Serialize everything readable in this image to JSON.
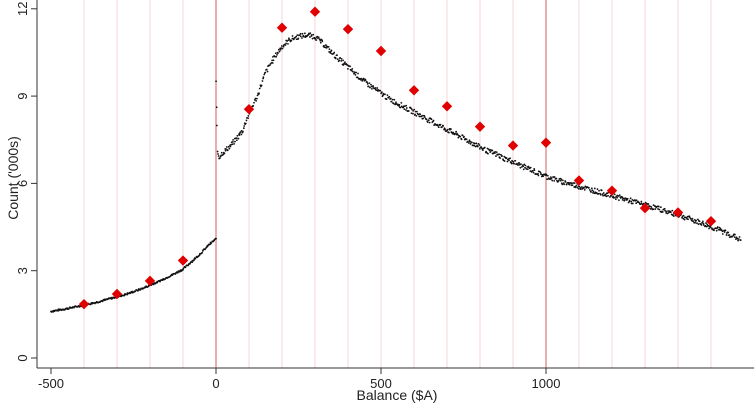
{
  "colors": {
    "background": "#ffffff",
    "axis": "#333333",
    "dots": "#111111",
    "markers": "#e00000",
    "gridline_minor": "#f6d6d6",
    "gridline_major": "#d97a7a"
  },
  "chart_data": {
    "type": "scatter",
    "title": "",
    "xlabel": "Balance ($A)",
    "ylabel": "Count ('000s)",
    "xlim": [
      -500,
      1600
    ],
    "ylim": [
      0,
      12
    ],
    "xticks": [
      -500,
      0,
      500,
      1000
    ],
    "xtick_labels": [
      "-500",
      "0",
      "500",
      "1000"
    ],
    "yticks": [
      0,
      3,
      6,
      9,
      12
    ],
    "ytick_labels": [
      "0",
      "3",
      "6",
      "9",
      "12"
    ],
    "reference_lines_x": [
      -400,
      -300,
      -200,
      -100,
      0,
      100,
      200,
      300,
      400,
      500,
      600,
      700,
      800,
      900,
      1000,
      1100,
      1200,
      1300,
      1400,
      1500
    ],
    "major_reference_lines_x": [
      0,
      1000
    ],
    "grid": false,
    "legend": "none",
    "series": [
      {
        "values": [
          [
            -500,
            1.6
          ],
          [
            -475,
            1.65
          ],
          [
            -450,
            1.7
          ],
          [
            -425,
            1.76
          ],
          [
            -400,
            1.82
          ],
          [
            -375,
            1.88
          ],
          [
            -350,
            1.95
          ],
          [
            -325,
            2.03
          ],
          [
            -300,
            2.1
          ],
          [
            -275,
            2.18
          ],
          [
            -250,
            2.28
          ],
          [
            -225,
            2.38
          ],
          [
            -200,
            2.5
          ],
          [
            -175,
            2.62
          ],
          [
            -150,
            2.76
          ],
          [
            -125,
            2.9
          ],
          [
            -100,
            3.05
          ],
          [
            -75,
            3.3
          ],
          [
            -50,
            3.55
          ],
          [
            -25,
            3.85
          ],
          [
            -5,
            4.05
          ],
          [
            0,
            4.1
          ],
          [
            0,
            9.5
          ],
          [
            5,
            7.1
          ],
          [
            10,
            6.9
          ],
          [
            20,
            7.05
          ],
          [
            40,
            7.25
          ],
          [
            60,
            7.5
          ],
          [
            80,
            7.8
          ],
          [
            100,
            8.4
          ],
          [
            125,
            9.0
          ],
          [
            150,
            9.8
          ],
          [
            175,
            10.3
          ],
          [
            200,
            10.7
          ],
          [
            225,
            10.95
          ],
          [
            250,
            11.05
          ],
          [
            275,
            11.1
          ],
          [
            300,
            11.05
          ],
          [
            325,
            10.8
          ],
          [
            350,
            10.5
          ],
          [
            375,
            10.25
          ],
          [
            400,
            10.0
          ],
          [
            425,
            9.75
          ],
          [
            450,
            9.5
          ],
          [
            475,
            9.3
          ],
          [
            500,
            9.1
          ],
          [
            525,
            8.9
          ],
          [
            550,
            8.75
          ],
          [
            575,
            8.6
          ],
          [
            600,
            8.45
          ],
          [
            625,
            8.3
          ],
          [
            650,
            8.15
          ],
          [
            675,
            8.0
          ],
          [
            700,
            7.85
          ],
          [
            725,
            7.7
          ],
          [
            750,
            7.55
          ],
          [
            775,
            7.4
          ],
          [
            800,
            7.25
          ],
          [
            825,
            7.1
          ],
          [
            850,
            7.0
          ],
          [
            875,
            6.85
          ],
          [
            900,
            6.75
          ],
          [
            925,
            6.6
          ],
          [
            950,
            6.5
          ],
          [
            975,
            6.35
          ],
          [
            1000,
            6.25
          ],
          [
            1025,
            6.15
          ],
          [
            1050,
            6.05
          ],
          [
            1075,
            5.98
          ],
          [
            1100,
            5.9
          ],
          [
            1125,
            5.82
          ],
          [
            1150,
            5.74
          ],
          [
            1175,
            5.66
          ],
          [
            1200,
            5.58
          ],
          [
            1225,
            5.5
          ],
          [
            1250,
            5.42
          ],
          [
            1275,
            5.34
          ],
          [
            1300,
            5.26
          ],
          [
            1325,
            5.18
          ],
          [
            1350,
            5.1
          ],
          [
            1375,
            5.0
          ],
          [
            1400,
            4.92
          ],
          [
            1425,
            4.82
          ],
          [
            1450,
            4.72
          ],
          [
            1475,
            4.62
          ],
          [
            1500,
            4.5
          ],
          [
            1525,
            4.4
          ],
          [
            1550,
            4.28
          ],
          [
            1575,
            4.15
          ],
          [
            1590,
            4.05
          ]
        ]
      },
      {
        "values": [
          [
            -400,
            1.85
          ],
          [
            -300,
            2.2
          ],
          [
            -200,
            2.65
          ],
          [
            -100,
            3.35
          ],
          [
            100,
            8.55
          ],
          [
            200,
            11.35
          ],
          [
            300,
            11.9
          ],
          [
            400,
            11.3
          ],
          [
            500,
            10.55
          ],
          [
            600,
            9.2
          ],
          [
            700,
            8.65
          ],
          [
            800,
            7.95
          ],
          [
            900,
            7.3
          ],
          [
            1000,
            7.4
          ],
          [
            1100,
            6.1
          ],
          [
            1200,
            5.75
          ],
          [
            1300,
            5.15
          ],
          [
            1400,
            5.0
          ],
          [
            1500,
            4.7
          ]
        ]
      }
    ]
  }
}
